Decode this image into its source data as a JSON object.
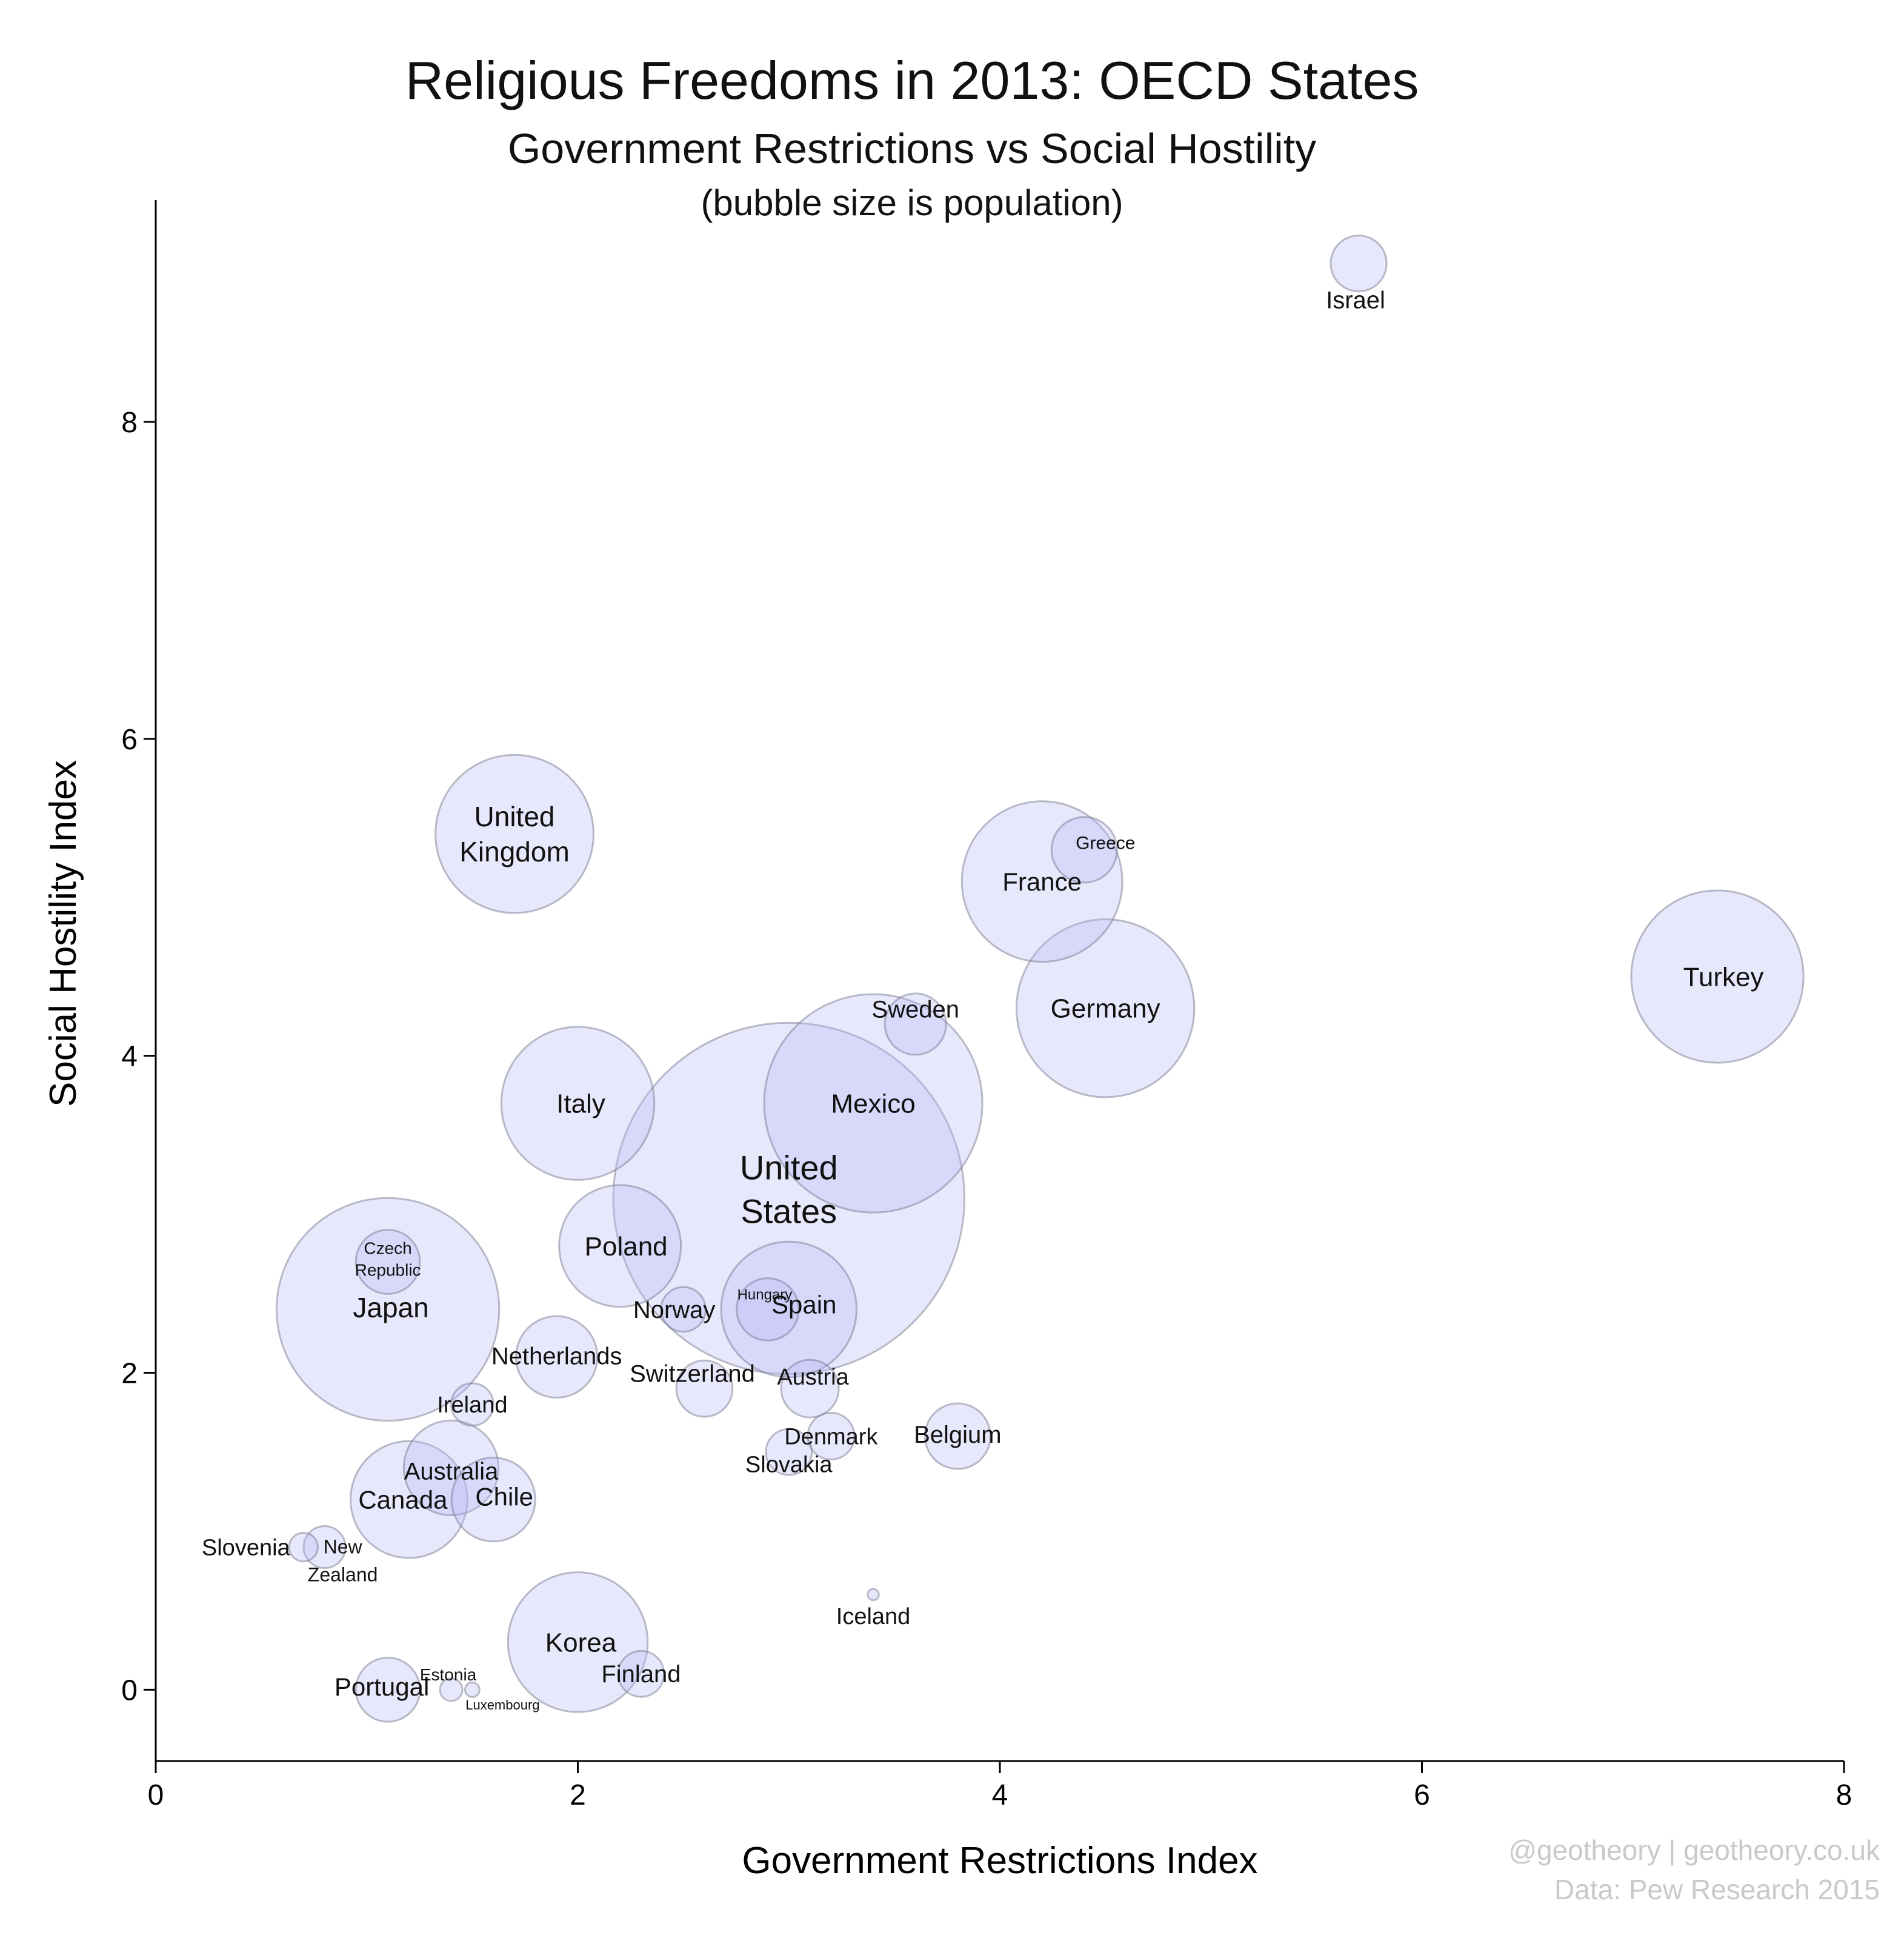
{
  "title": "Religious Freedoms in 2013: OECD States",
  "subtitle": "Government Restrictions vs Social Hostility",
  "note": "(bubble size is population)",
  "credit_line1": "@geotheory | geotheory.co.uk",
  "credit_line2": "Data: Pew Research 2015",
  "colors": {
    "bubble_fill": "#b8b8f6",
    "bubble_stroke": "#6f6f85",
    "credit": "#c9c9c9"
  },
  "chart_data": {
    "type": "scatter",
    "title": "Religious Freedoms in 2013: OECD States",
    "subtitle": "Government Restrictions vs Social Hostility",
    "xlabel": "Government Restrictions Index",
    "ylabel": "Social Hostility Index",
    "xlim": [
      0,
      8
    ],
    "ylim": [
      -0.45,
      9.4
    ],
    "xticks": [
      0,
      2,
      4,
      6,
      8
    ],
    "yticks": [
      0,
      2,
      4,
      6,
      8
    ],
    "grid": false,
    "points": [
      {
        "name": "United States",
        "label_lines": [
          "United",
          "States"
        ],
        "x": 3.0,
        "y": 3.1,
        "population_millions": 316
      },
      {
        "name": "Mexico",
        "x": 3.4,
        "y": 3.7,
        "population_millions": 122
      },
      {
        "name": "Japan",
        "x": 1.1,
        "y": 2.4,
        "population_millions": 127
      },
      {
        "name": "Turkey",
        "x": 7.4,
        "y": 4.5,
        "population_millions": 76
      },
      {
        "name": "Germany",
        "x": 4.5,
        "y": 4.3,
        "population_millions": 81
      },
      {
        "name": "France",
        "x": 4.2,
        "y": 5.1,
        "population_millions": 66
      },
      {
        "name": "United Kingdom",
        "label_lines": [
          "United",
          "Kingdom"
        ],
        "x": 1.7,
        "y": 5.4,
        "population_millions": 64
      },
      {
        "name": "Italy",
        "x": 2.0,
        "y": 3.7,
        "population_millions": 60
      },
      {
        "name": "Korea",
        "x": 2.0,
        "y": 0.3,
        "population_millions": 50
      },
      {
        "name": "Spain",
        "x": 3.0,
        "y": 2.4,
        "population_millions": 47
      },
      {
        "name": "Poland",
        "x": 2.2,
        "y": 2.8,
        "population_millions": 38
      },
      {
        "name": "Canada",
        "x": 1.2,
        "y": 1.2,
        "population_millions": 35
      },
      {
        "name": "Australia",
        "x": 1.4,
        "y": 1.4,
        "population_millions": 23
      },
      {
        "name": "Chile",
        "x": 1.6,
        "y": 1.2,
        "population_millions": 18
      },
      {
        "name": "Netherlands",
        "x": 1.9,
        "y": 2.1,
        "population_millions": 17
      },
      {
        "name": "Belgium",
        "x": 3.8,
        "y": 1.6,
        "population_millions": 11
      },
      {
        "name": "Greece",
        "x": 4.4,
        "y": 5.3,
        "population_millions": 11
      },
      {
        "name": "Czech Republic",
        "label_lines": [
          "Czech",
          "Republic"
        ],
        "x": 1.1,
        "y": 2.7,
        "population_millions": 10.5
      },
      {
        "name": "Portugal",
        "x": 1.1,
        "y": 0.0,
        "population_millions": 10.5
      },
      {
        "name": "Hungary",
        "x": 2.9,
        "y": 2.4,
        "population_millions": 9.9
      },
      {
        "name": "Sweden",
        "x": 3.6,
        "y": 4.2,
        "population_millions": 9.6
      },
      {
        "name": "Austria",
        "x": 3.1,
        "y": 1.9,
        "population_millions": 8.5
      },
      {
        "name": "Switzerland",
        "x": 2.6,
        "y": 1.9,
        "population_millions": 8.1
      },
      {
        "name": "Israel",
        "x": 5.7,
        "y": 9.0,
        "population_millions": 8.0
      },
      {
        "name": "Denmark",
        "x": 3.2,
        "y": 1.6,
        "population_millions": 5.6
      },
      {
        "name": "Finland",
        "x": 2.3,
        "y": 0.1,
        "population_millions": 5.4
      },
      {
        "name": "Slovakia",
        "x": 3.0,
        "y": 1.5,
        "population_millions": 5.4
      },
      {
        "name": "Norway",
        "x": 2.5,
        "y": 2.4,
        "population_millions": 5.1
      },
      {
        "name": "Ireland",
        "x": 1.5,
        "y": 1.8,
        "population_millions": 4.6
      },
      {
        "name": "New Zealand",
        "label_lines": [
          "New",
          "Zealand"
        ],
        "x": 0.8,
        "y": 0.9,
        "population_millions": 4.5
      },
      {
        "name": "Slovenia",
        "x": 0.7,
        "y": 0.9,
        "population_millions": 2.1
      },
      {
        "name": "Estonia",
        "x": 1.4,
        "y": 0.0,
        "population_millions": 1.3
      },
      {
        "name": "Luxembourg",
        "x": 1.5,
        "y": 0.0,
        "population_millions": 0.54
      },
      {
        "name": "Iceland",
        "x": 3.4,
        "y": 0.6,
        "population_millions": 0.32
      }
    ]
  }
}
